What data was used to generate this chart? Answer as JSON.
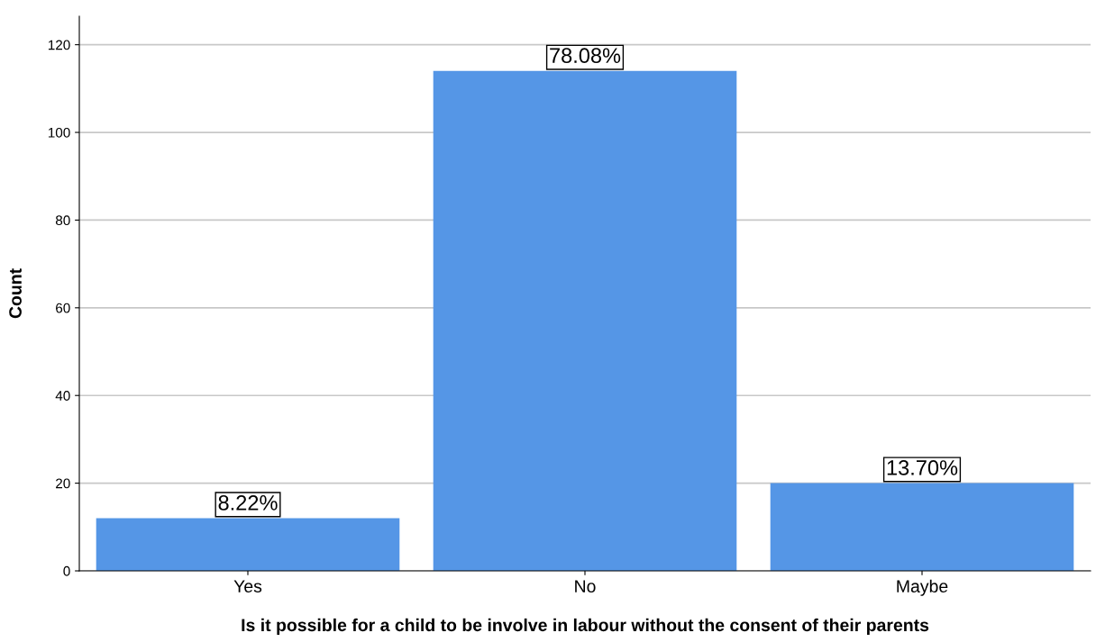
{
  "chart_data": {
    "type": "bar",
    "xlabel": "Is it possible for a child to be involve in labour without the consent of their parents",
    "ylabel": "Count",
    "categories": [
      "Yes",
      "No",
      "Maybe"
    ],
    "values": [
      12,
      114,
      20
    ],
    "annotations": [
      {
        "text": "8.22%",
        "x": "Yes",
        "y": 12
      },
      {
        "text": "78.08%",
        "x": "No",
        "y": 114
      },
      {
        "text": "13.70%",
        "x": "Maybe",
        "y": 20
      }
    ],
    "color": "#5596e6",
    "ylim": [
      0,
      126.5
    ],
    "yticks": [
      0,
      20,
      40,
      60,
      80,
      100,
      120
    ],
    "grid": "y",
    "legend": false
  }
}
